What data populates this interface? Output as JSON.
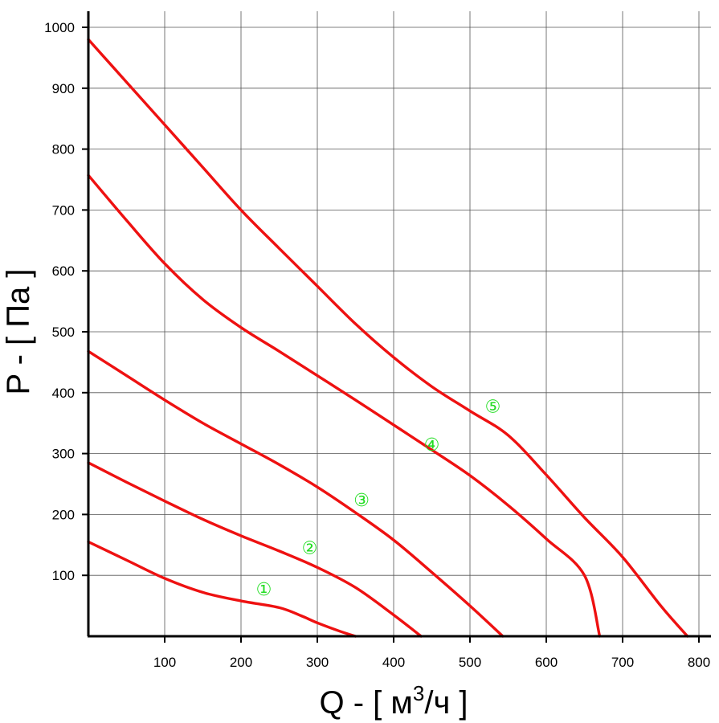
{
  "chart_data": {
    "type": "line",
    "title": "",
    "xlabel": "Q - [ м³/ч ]",
    "xlabel_main": "Q - [ м",
    "xlabel_sup": "3",
    "xlabel_end": "/ч ]",
    "ylabel": "P - [ Па ]",
    "xlim": [
      0,
      800
    ],
    "ylim": [
      0,
      1000
    ],
    "x_ticks": [
      100,
      200,
      300,
      400,
      500,
      600,
      700,
      800
    ],
    "y_ticks": [
      100,
      200,
      300,
      400,
      500,
      600,
      700,
      800,
      900,
      1000
    ],
    "grid": true,
    "colors": {
      "curve": "#ee1111",
      "label": "#22dd22",
      "grid": "#555555",
      "axis": "#000000"
    },
    "series": [
      {
        "label": "①",
        "label_pos": [
          230,
          78
        ],
        "x": [
          0,
          50,
          100,
          150,
          200,
          250,
          280,
          300,
          330,
          350
        ],
        "y": [
          155,
          125,
          95,
          72,
          58,
          47,
          33,
          22,
          8,
          0
        ]
      },
      {
        "label": "②",
        "label_pos": [
          290,
          146
        ],
        "x": [
          0,
          50,
          100,
          150,
          200,
          250,
          300,
          350,
          400,
          436
        ],
        "y": [
          285,
          253,
          222,
          192,
          165,
          140,
          113,
          80,
          35,
          0
        ]
      },
      {
        "label": "③",
        "label_pos": [
          358,
          224
        ],
        "x": [
          0,
          50,
          100,
          150,
          200,
          250,
          300,
          350,
          400,
          450,
          500,
          543
        ],
        "y": [
          468,
          428,
          388,
          350,
          316,
          282,
          245,
          203,
          158,
          105,
          50,
          0
        ]
      },
      {
        "label": "④",
        "label_pos": [
          450,
          315
        ],
        "x": [
          0,
          50,
          100,
          150,
          200,
          250,
          300,
          350,
          400,
          450,
          500,
          550,
          600,
          650,
          670
        ],
        "y": [
          757,
          683,
          612,
          553,
          507,
          468,
          428,
          388,
          347,
          306,
          264,
          215,
          160,
          100,
          0
        ]
      },
      {
        "label": "⑤",
        "label_pos": [
          530,
          378
        ],
        "x": [
          0,
          50,
          100,
          150,
          200,
          250,
          300,
          350,
          400,
          450,
          500,
          550,
          600,
          650,
          700,
          750,
          785
        ],
        "y": [
          980,
          910,
          840,
          770,
          700,
          637,
          575,
          513,
          458,
          410,
          370,
          330,
          265,
          195,
          130,
          50,
          0
        ]
      }
    ]
  }
}
